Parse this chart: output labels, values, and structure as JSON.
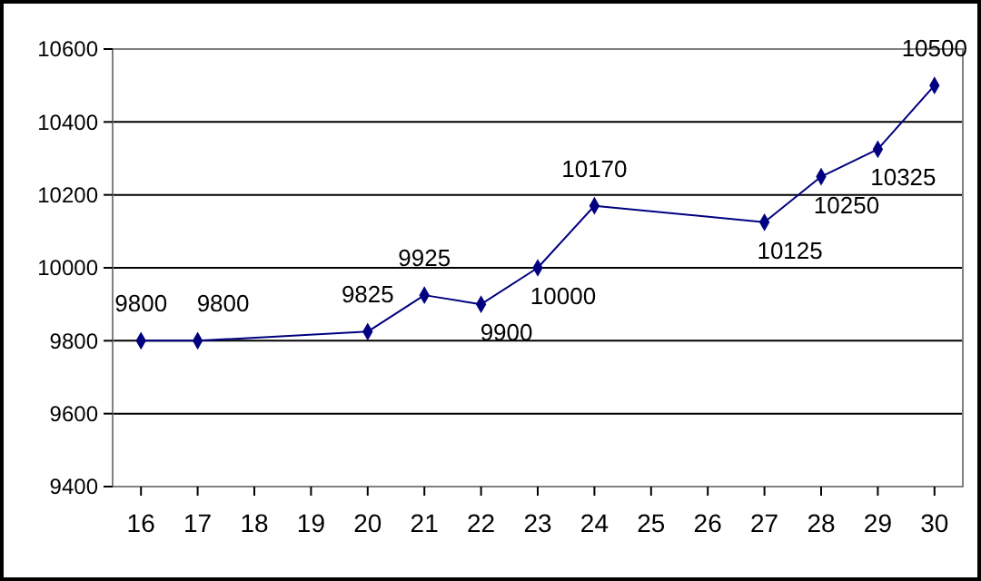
{
  "chart_data": {
    "type": "line",
    "x": [
      16,
      17,
      20,
      21,
      22,
      23,
      24,
      27,
      28,
      29,
      30
    ],
    "series": [
      {
        "color": "#000080",
        "values": [
          9800,
          9800,
          9825,
          9925,
          9900,
          10000,
          10170,
          10125,
          10250,
          10325,
          10500
        ]
      }
    ],
    "xlim": [
      15.5,
      30.5
    ],
    "xticks": [
      16,
      17,
      18,
      19,
      20,
      21,
      22,
      23,
      24,
      25,
      26,
      27,
      28,
      29,
      30
    ],
    "ylim": [
      9400,
      10600
    ],
    "yticks": [
      9400,
      9600,
      9800,
      10000,
      10200,
      10400,
      10600
    ],
    "grid": "y",
    "marker": "diamond",
    "line_style": "solid",
    "data_labels": true
  }
}
